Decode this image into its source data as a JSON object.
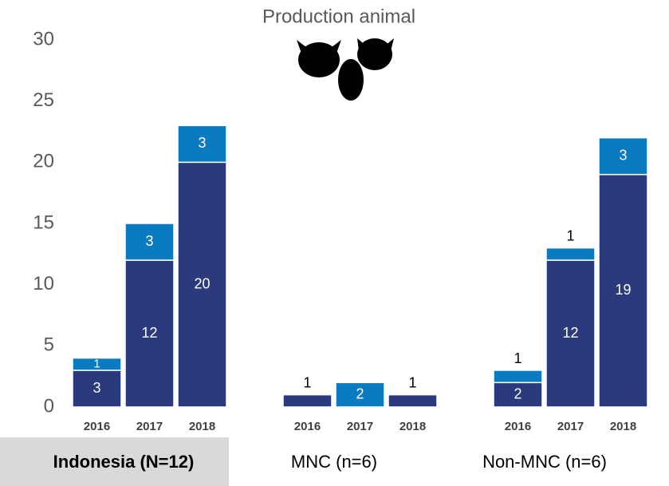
{
  "chart_data": {
    "type": "stacked-bar",
    "title": "Production animal",
    "categories": [
      "2016",
      "2017",
      "2018",
      "2016",
      "2017",
      "2018",
      "2016",
      "2017",
      "2018"
    ],
    "groups": [
      "Indonesia (N=12)",
      "MNC (n=6)",
      "Non-MNC (n=6)"
    ],
    "series": [
      {
        "color": "#2a3a7d",
        "values": [
          3,
          12,
          20,
          1,
          null,
          1,
          2,
          12,
          19
        ]
      },
      {
        "color": "#0b7bc1",
        "values": [
          1,
          3,
          3,
          null,
          2,
          null,
          1,
          1,
          3
        ]
      }
    ],
    "ylim": [
      0,
      30
    ],
    "yticks": [
      0,
      5,
      10,
      15,
      20,
      25,
      30
    ]
  }
}
